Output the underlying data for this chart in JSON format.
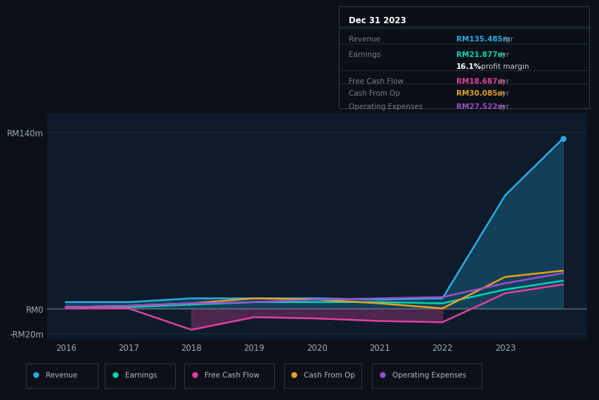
{
  "years": [
    2016,
    2017,
    2018,
    2019,
    2020,
    2021,
    2022,
    2023,
    2023.92
  ],
  "revenue": [
    5,
    5,
    8,
    8,
    8,
    7,
    8,
    90,
    135
  ],
  "earnings": [
    1,
    1,
    3,
    5,
    5,
    5,
    4,
    15,
    22
  ],
  "free_cash_flow": [
    0,
    0,
    -17,
    -7,
    -8,
    -10,
    -11,
    12,
    19
  ],
  "cash_from_op": [
    1,
    2,
    4,
    8,
    7,
    4,
    0,
    25,
    30
  ],
  "operating_expenses": [
    1,
    2,
    4,
    5,
    7,
    8,
    9,
    20,
    28
  ],
  "revenue_color": "#29ABE2",
  "earnings_color": "#00D4B4",
  "free_cash_flow_color": "#E040A0",
  "cash_from_op_color": "#E8A020",
  "operating_expenses_color": "#9B4FD0",
  "bg_color": "#0D1117",
  "chart_bg": "#0D1B2A",
  "grid_color": "#1E2E40",
  "zero_line_color": "#607080",
  "text_color": "#9AAABB",
  "ylim": [
    -25,
    155
  ],
  "yticks": [
    -20,
    0,
    140
  ],
  "ytick_labels": [
    "-RM20m",
    "RM0",
    "RM140m"
  ],
  "xlim": [
    2015.7,
    2024.3
  ],
  "xticks": [
    2016,
    2017,
    2018,
    2019,
    2020,
    2021,
    2022,
    2023
  ],
  "legend_items": [
    "Revenue",
    "Earnings",
    "Free Cash Flow",
    "Cash From Op",
    "Operating Expenses"
  ],
  "legend_colors": [
    "#29ABE2",
    "#00D4B4",
    "#E040A0",
    "#E8A020",
    "#9B4FD0"
  ],
  "info_title": "Dec 31 2023",
  "info_rows": [
    {
      "label": "Revenue",
      "value": "RM135.485m",
      "suffix": " /yr",
      "value_color": "#29ABE2"
    },
    {
      "label": "Earnings",
      "value": "RM21.877m",
      "suffix": " /yr",
      "value_color": "#00D4B4"
    },
    {
      "label": "",
      "value": "16.1%",
      "suffix": " profit margin",
      "value_color": "#FFFFFF"
    },
    {
      "label": "Free Cash Flow",
      "value": "RM18.687m",
      "suffix": " /yr",
      "value_color": "#E040A0"
    },
    {
      "label": "Cash From Op",
      "value": "RM30.085m",
      "suffix": " /yr",
      "value_color": "#E8A020"
    },
    {
      "label": "Operating Expenses",
      "value": "RM27.522m",
      "suffix": " /yr",
      "value_color": "#9B4FD0"
    }
  ]
}
